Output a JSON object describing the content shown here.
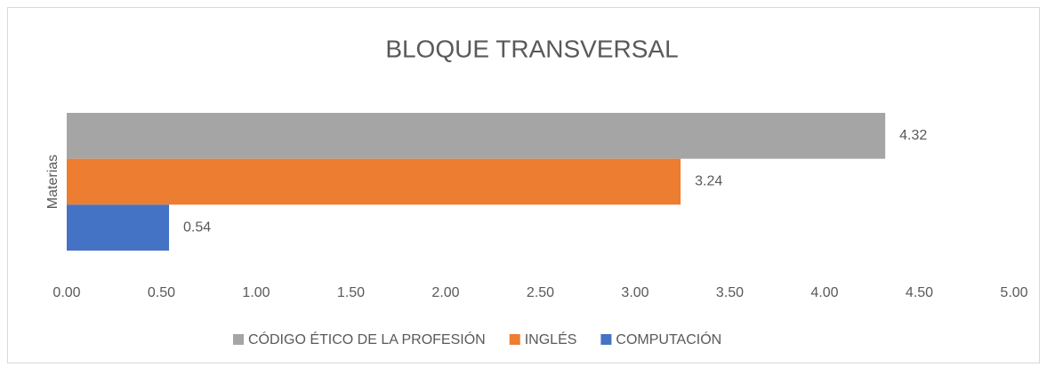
{
  "chart_data": {
    "type": "bar",
    "orientation": "horizontal",
    "title": "BLOQUE TRANSVERSAL",
    "categories": [
      "Materias"
    ],
    "series": [
      {
        "name": "CÓDIGO ÉTICO DE LA PROFESIÓN",
        "color": "#a5a5a5",
        "values": [
          4.32
        ]
      },
      {
        "name": "INGLÉS",
        "color": "#ed7d31",
        "values": [
          3.24
        ]
      },
      {
        "name": "COMPUTACIÓN",
        "color": "#4472c4",
        "values": [
          0.54
        ]
      }
    ],
    "xlim": [
      0,
      5
    ],
    "xticks": [
      {
        "value": 0,
        "label": "0.00"
      },
      {
        "value": 0.5,
        "label": "0.50"
      },
      {
        "value": 1,
        "label": "1.00"
      },
      {
        "value": 1.5,
        "label": "1.50"
      },
      {
        "value": 2,
        "label": "2.00"
      },
      {
        "value": 2.5,
        "label": "2.50"
      },
      {
        "value": 3,
        "label": "3.00"
      },
      {
        "value": 3.5,
        "label": "3.50"
      },
      {
        "value": 4,
        "label": "4.00"
      },
      {
        "value": 4.5,
        "label": "4.50"
      },
      {
        "value": 5,
        "label": "5.00"
      }
    ],
    "grid": false,
    "legend": "bottom"
  }
}
